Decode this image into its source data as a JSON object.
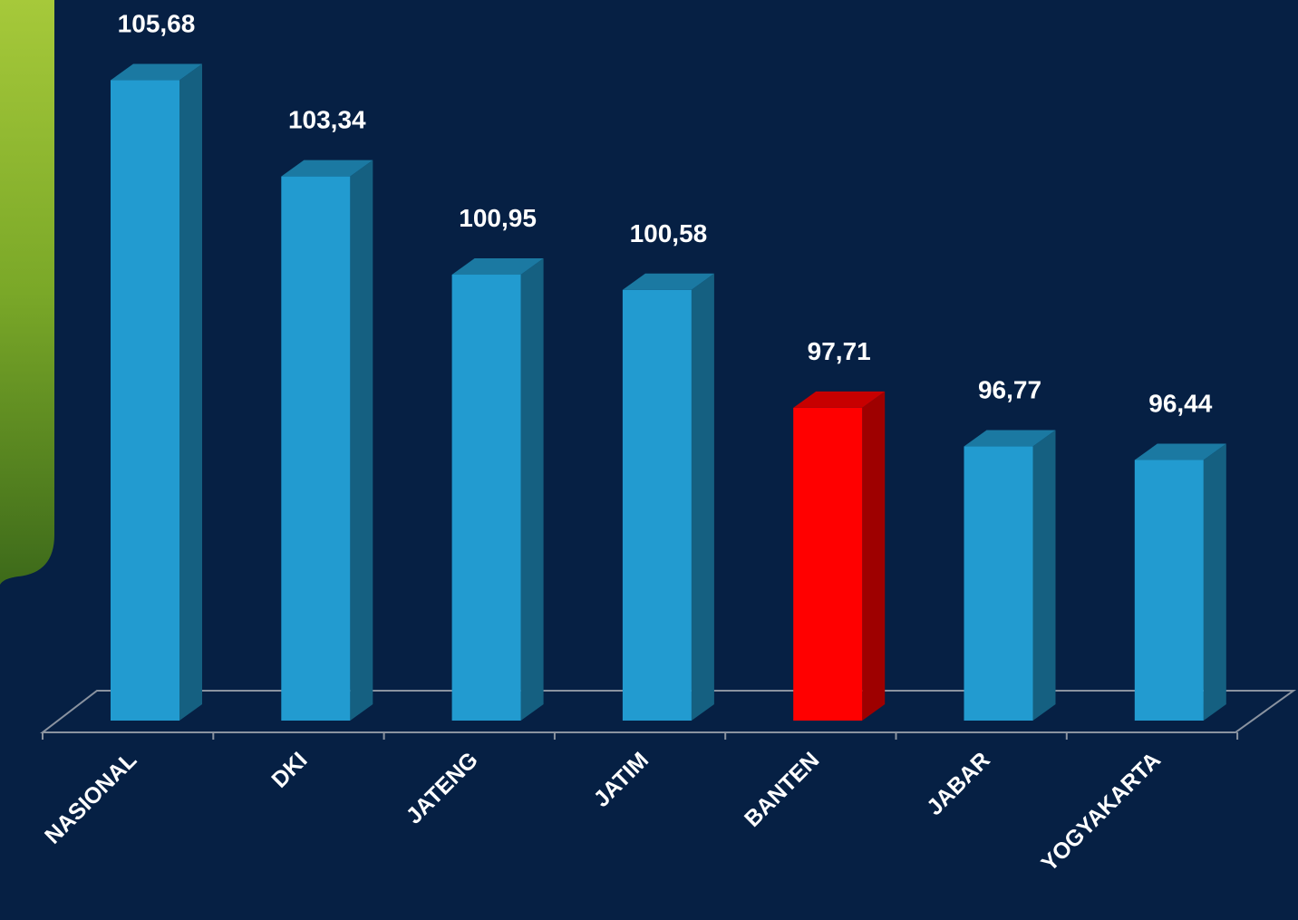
{
  "chart_data": {
    "type": "bar3d",
    "categories": [
      "NASIONAL",
      "DKI",
      "JATENG",
      "JATIM",
      "BANTEN",
      "JABAR",
      "YOGYAKARTA"
    ],
    "values": [
      105.68,
      103.34,
      100.95,
      100.58,
      97.71,
      96.77,
      96.44
    ],
    "value_labels": [
      "105,68",
      "103,34",
      "100,95",
      "100,58",
      "97,71",
      "96,77",
      "96,44"
    ],
    "colors": [
      "#229bd0",
      "#229bd0",
      "#229bd0",
      "#229bd0",
      "#ff0000",
      "#229bd0",
      "#229bd0"
    ],
    "ylim": [
      90.1,
      107.5
    ]
  }
}
